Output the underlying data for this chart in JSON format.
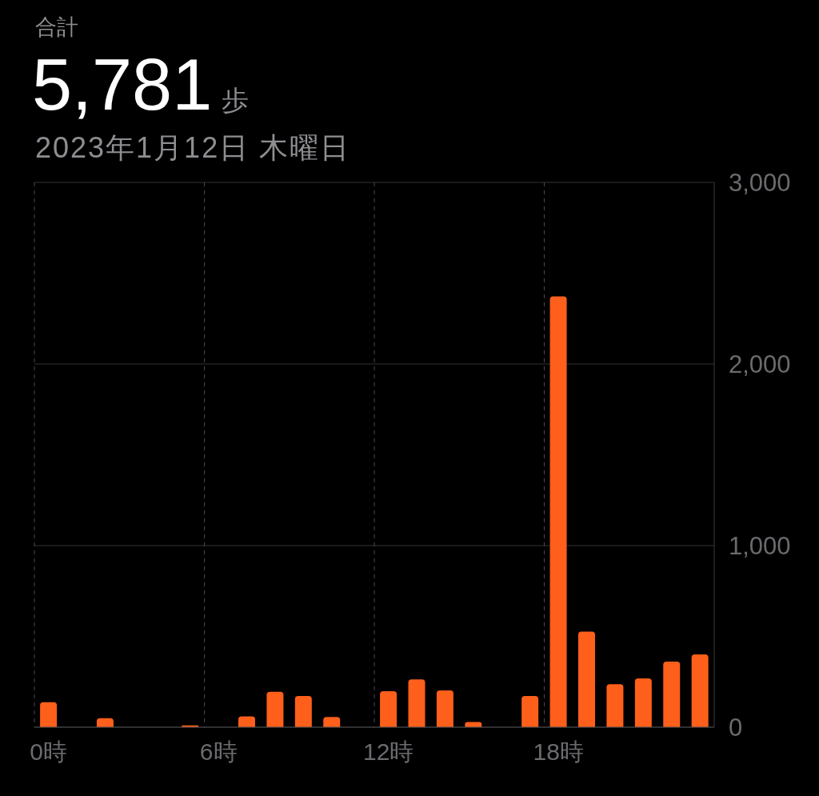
{
  "chart_data": {
    "type": "bar",
    "title": "合計",
    "annotations": [
      "5,781",
      "歩"
    ],
    "subtitle": "2023年1月12日 木曜日",
    "categories": [
      "0時",
      null,
      null,
      null,
      null,
      null,
      "6時",
      null,
      null,
      null,
      null,
      null,
      "12時",
      null,
      null,
      null,
      null,
      null,
      "18時",
      null,
      null,
      null,
      null,
      null
    ],
    "values": [
      138,
      null,
      50,
      null,
      null,
      10,
      null,
      60,
      195,
      172,
      56,
      null,
      198,
      263,
      203,
      29,
      null,
      172,
      2372,
      526,
      237,
      269,
      361,
      401
    ],
    "color": "#fe5f1b",
    "ylim": [
      0,
      3000
    ],
    "yticks": [
      {
        "value": 0,
        "label": "0"
      },
      {
        "value": 1000,
        "label": "1,000"
      },
      {
        "value": 2000,
        "label": "2,000"
      },
      {
        "value": 3000,
        "label": "3,000"
      }
    ],
    "grid": true
  }
}
